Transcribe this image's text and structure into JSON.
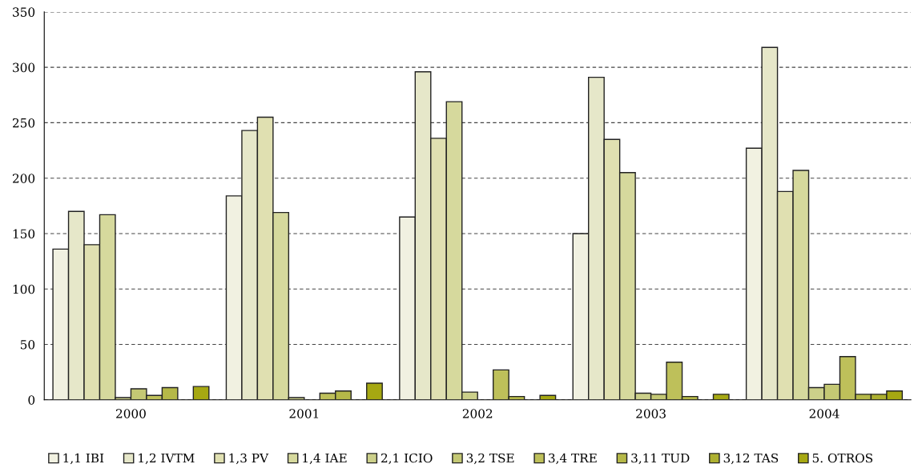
{
  "chart_data": {
    "type": "bar",
    "categories": [
      "2000",
      "2001",
      "2002",
      "2003",
      "2004"
    ],
    "ylim": [
      0,
      350
    ],
    "yticks": [
      0,
      50,
      100,
      150,
      200,
      250,
      300,
      350
    ],
    "grid": "y",
    "legend": "bottom",
    "series": [
      {
        "name": "1,1 IBI",
        "color": "#f1f1e1",
        "values": [
          136,
          184,
          165,
          150,
          227
        ]
      },
      {
        "name": "1,2 IVTM",
        "color": "#e6e7c9",
        "values": [
          170,
          243,
          296,
          291,
          318
        ]
      },
      {
        "name": "1,3 PV",
        "color": "#e0e0b1",
        "values": [
          140,
          255,
          236,
          235,
          188
        ]
      },
      {
        "name": "1,4 IAE",
        "color": "#d6d99d",
        "values": [
          167,
          169,
          269,
          205,
          207
        ]
      },
      {
        "name": "2,1 ICIO",
        "color": "#ccd08a",
        "values": [
          2,
          2,
          7,
          6,
          11
        ]
      },
      {
        "name": "3,2 TSE",
        "color": "#c4c874",
        "values": [
          10,
          null,
          null,
          5,
          14
        ]
      },
      {
        "name": "3,4 TRE",
        "color": "#bec05a",
        "values": [
          4,
          6,
          27,
          34,
          39
        ]
      },
      {
        "name": "3,11 TUD",
        "color": "#b5b848",
        "values": [
          11,
          8,
          3,
          3,
          5
        ]
      },
      {
        "name": "3,12 TAS",
        "color": "#adb030",
        "values": [
          null,
          null,
          null,
          null,
          5
        ]
      },
      {
        "name": "5. OTROS",
        "color": "#a6a812",
        "values": [
          12,
          15,
          4,
          5,
          8
        ]
      }
    ]
  }
}
